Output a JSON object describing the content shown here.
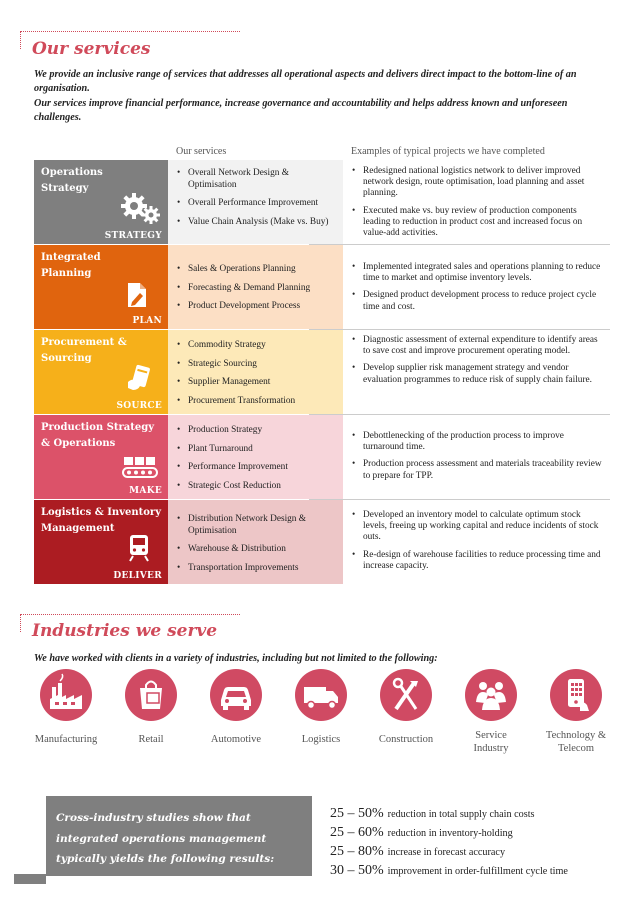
{
  "services_section": {
    "title": "Our services",
    "intro1": "We provide an inclusive range of services that addresses all operational aspects and delivers direct impact to the bottom-line of an organisation.",
    "intro2": "Our services improve financial performance, increase governance and accountability and helps address known and unforeseen challenges.",
    "col_services": "Our services",
    "col_examples": "Examples of typical projects we have completed"
  },
  "rows": [
    {
      "category": "Operations Strategy",
      "label": "STRATEGY",
      "icon": "gears-icon",
      "color": "#7f7f7f",
      "svc_bg": "#f2f2f2",
      "services": [
        "Overall Network Design & Optimisation",
        "Overall Performance Improvement",
        "Value Chain Analysis (Make vs. Buy)"
      ],
      "examples": [
        "Redesigned national logistics network to deliver improved network design, route optimisation, load planning and asset planning.",
        "Executed make vs. buy review of production components leading to reduction in product cost and increased focus on value-add activities."
      ]
    },
    {
      "category": "Integrated Planning",
      "label": "PLAN",
      "icon": "document-edit-icon",
      "color": "#e0640e",
      "svc_bg": "#fcdfc5",
      "services": [
        "Sales & Operations Planning",
        "Forecasting & Demand Planning",
        "Product Development Process"
      ],
      "examples": [
        "Implemented integrated sales and operations planning to reduce time to market and optimise inventory levels.",
        "Designed product development process to reduce project cycle time and cost."
      ]
    },
    {
      "category": "Procurement & Sourcing",
      "label": "SOURCE",
      "icon": "card-hand-icon",
      "color": "#f6b01a",
      "svc_bg": "#fde9b8",
      "services": [
        "Commodity Strategy",
        "Strategic Sourcing",
        "Supplier Management",
        "Procurement Transformation"
      ],
      "examples": [
        "Diagnostic assessment of external expenditure to identify areas to save cost and improve procurement operating model.",
        "Develop supplier risk management strategy and vendor evaluation programmes to reduce risk of supply chain failure."
      ]
    },
    {
      "category": "Production Strategy & Operations",
      "label": "MAKE",
      "icon": "conveyor-icon",
      "color": "#dc5269",
      "svc_bg": "#f7d5da",
      "services": [
        "Production Strategy",
        "Plant Turnaround",
        "Performance Improvement",
        "Strategic Cost Reduction"
      ],
      "examples": [
        "Debottlenecking of the production process to improve turnaround time.",
        "Production process assessment and materials traceability review to prepare for TPP."
      ]
    },
    {
      "category": "Logistics & Inventory Management",
      "label": "DELIVER",
      "icon": "train-icon",
      "color": "#ac1c22",
      "svc_bg": "#edc6c7",
      "services": [
        "Distribution Network Design & Optimisation",
        "Warehouse & Distribution",
        "Transportation Improvements"
      ],
      "examples": [
        "Developed an inventory model to calculate optimum stock levels, freeing up working capital and reduce incidents of stock outs.",
        "Re-design of warehouse facilities to reduce processing time and increase capacity."
      ]
    }
  ],
  "industries_section": {
    "title": "Industries we serve",
    "intro": "We have worked with clients in a variety of industries, including but not limited to the following:",
    "items": [
      {
        "label": "Manufacturing",
        "icon": "factory-icon"
      },
      {
        "label": "Retail",
        "icon": "shopping-bag-icon"
      },
      {
        "label": "Automotive",
        "icon": "car-icon"
      },
      {
        "label": "Logistics",
        "icon": "truck-icon"
      },
      {
        "label": "Construction",
        "icon": "tools-icon"
      },
      {
        "label": "Service Industry",
        "icon": "people-icon"
      },
      {
        "label": "Technology & Telecom",
        "icon": "phone-icon"
      }
    ]
  },
  "results": {
    "box_text": "Cross-industry studies show that integrated operations management typically yields the following results:",
    "stats": [
      {
        "range": "25 – 50%",
        "text": "reduction in total supply chain costs"
      },
      {
        "range": "25 – 60%",
        "text": "reduction in inventory-holding"
      },
      {
        "range": "25 – 80%",
        "text": "increase in forecast accuracy"
      },
      {
        "range": "30 – 50%",
        "text": "improvement in order-fulfillment cycle time"
      }
    ]
  },
  "accent_color": "#d04a5a"
}
